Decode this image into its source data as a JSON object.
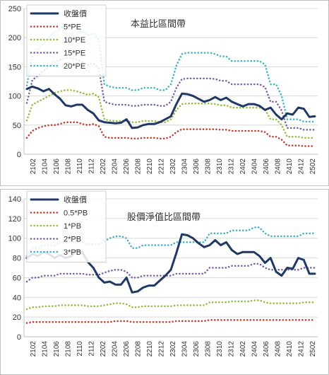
{
  "chart_data": [
    {
      "type": "line",
      "title": "本益比區間帶",
      "ylim": [
        0,
        250
      ],
      "yticks": [
        0,
        50,
        100,
        150,
        200,
        250
      ],
      "grid": true,
      "legend_position": "top-left",
      "xticks": [
        "2102",
        "2104",
        "2106",
        "2108",
        "2110",
        "2112",
        "2202",
        "2204",
        "2206",
        "2208",
        "2210",
        "2212",
        "2302",
        "2304",
        "2306",
        "2308",
        "2310",
        "2312",
        "2402",
        "2404",
        "2406",
        "2408",
        "2410",
        "2412",
        "2502"
      ],
      "series": [
        {
          "name": "收盤價",
          "color": "#1f3864",
          "style": "solid",
          "values": [
            112,
            116,
            113,
            108,
            112,
            103,
            95,
            84,
            82,
            85,
            85,
            76,
            70,
            58,
            55,
            54,
            53,
            54,
            60,
            45,
            46,
            50,
            52,
            52,
            55,
            60,
            65,
            86,
            104,
            103,
            100,
            95,
            90,
            93,
            98,
            93,
            97,
            90,
            86,
            82,
            86,
            86,
            83,
            76,
            80,
            68,
            60,
            70,
            68,
            80,
            78,
            64,
            65
          ]
        },
        {
          "name": "5*PE",
          "color": "#c0392b",
          "style": "dotted",
          "values": [
            28,
            40,
            45,
            48,
            50,
            50,
            52,
            55,
            55,
            55,
            52,
            50,
            52,
            48,
            30,
            28,
            28,
            28,
            28,
            27,
            27,
            28,
            28,
            28,
            27,
            27,
            30,
            38,
            43,
            43,
            43,
            43,
            43,
            43,
            43,
            42,
            42,
            40,
            40,
            40,
            40,
            40,
            40,
            38,
            30,
            30,
            25,
            15,
            15,
            15,
            14,
            14,
            14
          ]
        },
        {
          "name": "10*PE",
          "color": "#8fbc3a",
          "style": "dotted",
          "values": [
            58,
            85,
            90,
            95,
            100,
            105,
            108,
            110,
            110,
            108,
            105,
            102,
            104,
            98,
            60,
            58,
            57,
            57,
            57,
            55,
            55,
            57,
            57,
            57,
            55,
            55,
            60,
            76,
            86,
            87,
            87,
            87,
            87,
            87,
            86,
            84,
            84,
            80,
            80,
            80,
            80,
            80,
            80,
            77,
            60,
            60,
            50,
            30,
            30,
            30,
            28,
            28,
            28
          ]
        },
        {
          "name": "15*PE",
          "color": "#7b5aa6",
          "style": "dotted",
          "values": [
            88,
            127,
            135,
            143,
            150,
            158,
            162,
            165,
            165,
            162,
            158,
            153,
            156,
            147,
            90,
            87,
            85,
            85,
            85,
            83,
            83,
            85,
            85,
            85,
            83,
            83,
            90,
            114,
            129,
            130,
            130,
            130,
            130,
            130,
            129,
            126,
            126,
            120,
            120,
            120,
            120,
            120,
            120,
            115,
            90,
            90,
            75,
            45,
            45,
            45,
            42,
            42,
            42
          ]
        },
        {
          "name": "20*PE",
          "color": "#3bb0c9",
          "style": "dotted",
          "values": [
            118,
            170,
            180,
            190,
            200,
            210,
            215,
            220,
            220,
            216,
            210,
            204,
            208,
            196,
            120,
            116,
            114,
            114,
            114,
            110,
            110,
            114,
            114,
            114,
            110,
            110,
            120,
            152,
            172,
            174,
            174,
            174,
            174,
            174,
            172,
            168,
            168,
            160,
            160,
            160,
            160,
            160,
            160,
            154,
            120,
            120,
            100,
            60,
            60,
            60,
            56,
            56,
            56
          ]
        }
      ]
    },
    {
      "type": "line",
      "title": "股價淨值比區間帶",
      "ylim": [
        0,
        140
      ],
      "yticks": [
        0,
        20,
        40,
        60,
        80,
        100,
        120,
        140
      ],
      "grid": true,
      "legend_position": "top-left",
      "xticks": [
        "2102",
        "2104",
        "2106",
        "2108",
        "2110",
        "2112",
        "2202",
        "2204",
        "2206",
        "2208",
        "2210",
        "2212",
        "2302",
        "2304",
        "2306",
        "2308",
        "2310",
        "2312",
        "2402",
        "2404",
        "2406",
        "2408",
        "2410",
        "2412",
        "2502"
      ],
      "series": [
        {
          "name": "收盤價",
          "color": "#1f3864",
          "style": "solid",
          "values": [
            80,
            84,
            82,
            86,
            84,
            80,
            83,
            80,
            82,
            88,
            86,
            76,
            70,
            60,
            55,
            56,
            53,
            53,
            60,
            45,
            46,
            50,
            52,
            52,
            57,
            62,
            68,
            85,
            104,
            103,
            100,
            95,
            91,
            93,
            98,
            93,
            96,
            88,
            84,
            86,
            86,
            86,
            82,
            75,
            80,
            66,
            62,
            70,
            69,
            80,
            78,
            64,
            64
          ]
        },
        {
          "name": "0.5*PB",
          "color": "#c0392b",
          "style": "dotted",
          "values": [
            14,
            15,
            15,
            15,
            15,
            15,
            15,
            15,
            15,
            15,
            15,
            15,
            15,
            15,
            15,
            15,
            16,
            16,
            16,
            15,
            15,
            15,
            15,
            15,
            15,
            15,
            15,
            16,
            16,
            16,
            16,
            16,
            16,
            17,
            17,
            17,
            17,
            17,
            17,
            17,
            17,
            17,
            17,
            17,
            17,
            17,
            17,
            17,
            17,
            17,
            17,
            17,
            17
          ]
        },
        {
          "name": "1*PB",
          "color": "#8fbc3a",
          "style": "dotted",
          "values": [
            28,
            30,
            30,
            31,
            31,
            31,
            32,
            32,
            32,
            32,
            32,
            31,
            31,
            31,
            32,
            33,
            34,
            34,
            33,
            30,
            30,
            31,
            31,
            31,
            31,
            31,
            31,
            32,
            32,
            32,
            32,
            32,
            32,
            35,
            35,
            35,
            35,
            36,
            36,
            36,
            36,
            37,
            37,
            35,
            34,
            34,
            34,
            34,
            34,
            34,
            35,
            35,
            35
          ]
        },
        {
          "name": "2*PB",
          "color": "#7b5aa6",
          "style": "dotted",
          "values": [
            56,
            60,
            60,
            62,
            62,
            62,
            64,
            64,
            64,
            64,
            64,
            63,
            63,
            63,
            65,
            67,
            68,
            68,
            66,
            60,
            60,
            62,
            62,
            62,
            62,
            62,
            62,
            64,
            64,
            64,
            64,
            64,
            64,
            70,
            70,
            70,
            70,
            72,
            72,
            72,
            72,
            74,
            74,
            70,
            68,
            68,
            68,
            68,
            68,
            68,
            70,
            70,
            70
          ]
        },
        {
          "name": "3*PB",
          "color": "#3bb0c9",
          "style": "dotted",
          "values": [
            82,
            90,
            90,
            93,
            93,
            93,
            96,
            96,
            96,
            96,
            96,
            94,
            94,
            94,
            97,
            100,
            102,
            102,
            100,
            90,
            90,
            93,
            93,
            93,
            93,
            93,
            93,
            96,
            96,
            96,
            96,
            96,
            96,
            105,
            105,
            105,
            105,
            108,
            108,
            108,
            108,
            111,
            111,
            105,
            102,
            102,
            102,
            102,
            102,
            102,
            105,
            105,
            105
          ]
        }
      ]
    }
  ]
}
